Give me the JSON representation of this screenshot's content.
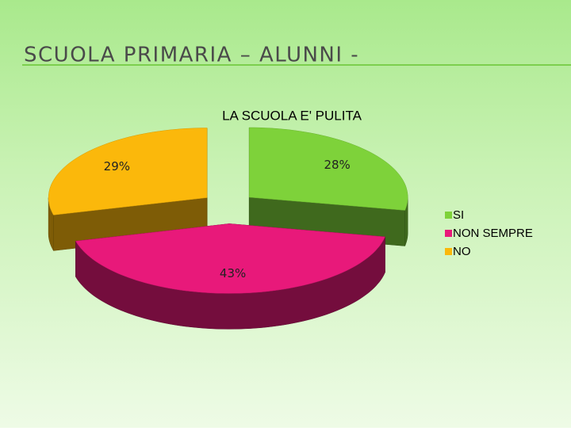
{
  "slide_title": "SCUOLA PRIMARIA – ALUNNI -",
  "chart_data": {
    "type": "pie3d",
    "title": "LA SCUOLA E' PULITA",
    "categories": [
      "SI",
      "NON SEMPRE",
      "NO"
    ],
    "values": [
      28,
      43,
      29
    ],
    "value_labels": [
      "28%",
      "43%",
      "29%"
    ],
    "colors": [
      "#7ed23a",
      "#e8197a",
      "#fbb80b"
    ],
    "legend": "right"
  }
}
